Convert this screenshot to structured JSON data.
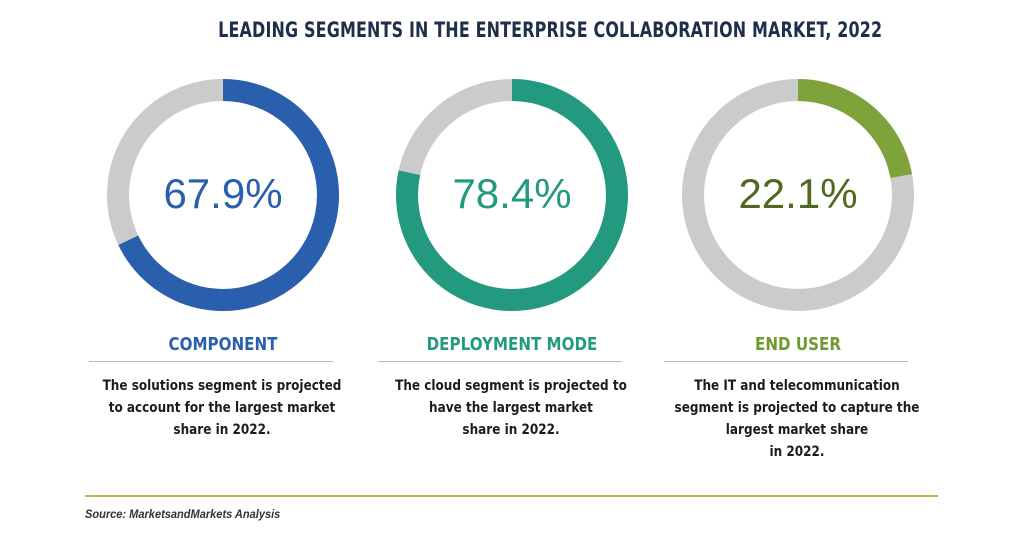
{
  "header": {
    "title": "LEADING SEGMENTS IN THE ENTERPRISE COLLABORATION MARKET, 2022"
  },
  "colors": {
    "track": "#cbcbcb"
  },
  "chart_data": [
    {
      "type": "pie",
      "value": 67.9,
      "value_label": "67.9%",
      "label": "COMPONENT",
      "description_lines": [
        "The solutions segment is projected",
        "to account for the largest market",
        "share in 2022."
      ],
      "color": "#2a5fae",
      "text_color": "#2a5fae",
      "start_angle_deg": 0,
      "direction": "clockwise"
    },
    {
      "type": "pie",
      "value": 78.4,
      "value_label": "78.4%",
      "label": "DEPLOYMENT MODE",
      "description_lines": [
        "The cloud segment is projected  to",
        "have the largest market",
        "share in 2022."
      ],
      "color": "#23997f",
      "text_color": "#23997f",
      "start_angle_deg": 0,
      "direction": "clockwise"
    },
    {
      "type": "pie",
      "value": 22.1,
      "value_label": "22.1%",
      "label": "END USER",
      "description_lines": [
        "The IT and telecommunication",
        "segment is projected to capture the",
        "largest market share",
        "in 2022."
      ],
      "color": "#7ea33b",
      "text_color": "#4f6a20",
      "label_color": "#6f9a2e",
      "start_angle_deg": 0,
      "direction": "clockwise"
    }
  ],
  "footer": {
    "source": "Source: MarketsandMarkets Analysis"
  }
}
